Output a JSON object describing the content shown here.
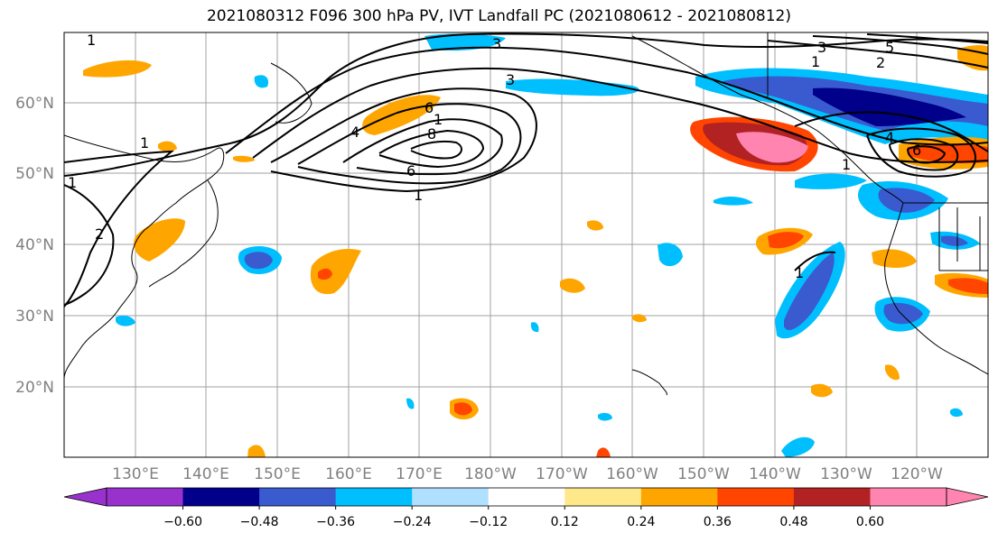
{
  "title": "2021080312 F096 300 hPa PV, IVT Landfall PC (2021080612 - 2021080812)",
  "lat_labels": [
    "60°N",
    "50°N",
    "40°N",
    "30°N",
    "20°N"
  ],
  "lon_labels": [
    "130°E",
    "140°E",
    "150°E",
    "160°E",
    "170°E",
    "180°W",
    "170°W",
    "160°W",
    "150°W",
    "140°W",
    "130°W",
    "120°W"
  ],
  "colorbar": {
    "colors": [
      "#9932cc",
      "#00008b",
      "#3a5bcf",
      "#00bfff",
      "#b0e0ff",
      "#ffffff",
      "#ffe88a",
      "#ffa500",
      "#ff4500",
      "#b22222",
      "#ff85b0"
    ],
    "tick_labels": [
      "−0.60",
      "−0.48",
      "−0.36",
      "−0.24",
      "−0.12",
      "0.12",
      "0.24",
      "0.36",
      "0.48",
      "0.60"
    ]
  },
  "contour_labels": [
    "1",
    "3",
    "3",
    "1",
    "4",
    "6",
    "8",
    "1",
    "6",
    "1",
    "3",
    "5",
    "1",
    "2",
    "4",
    "6",
    "1",
    "1",
    "1",
    "2"
  ]
}
